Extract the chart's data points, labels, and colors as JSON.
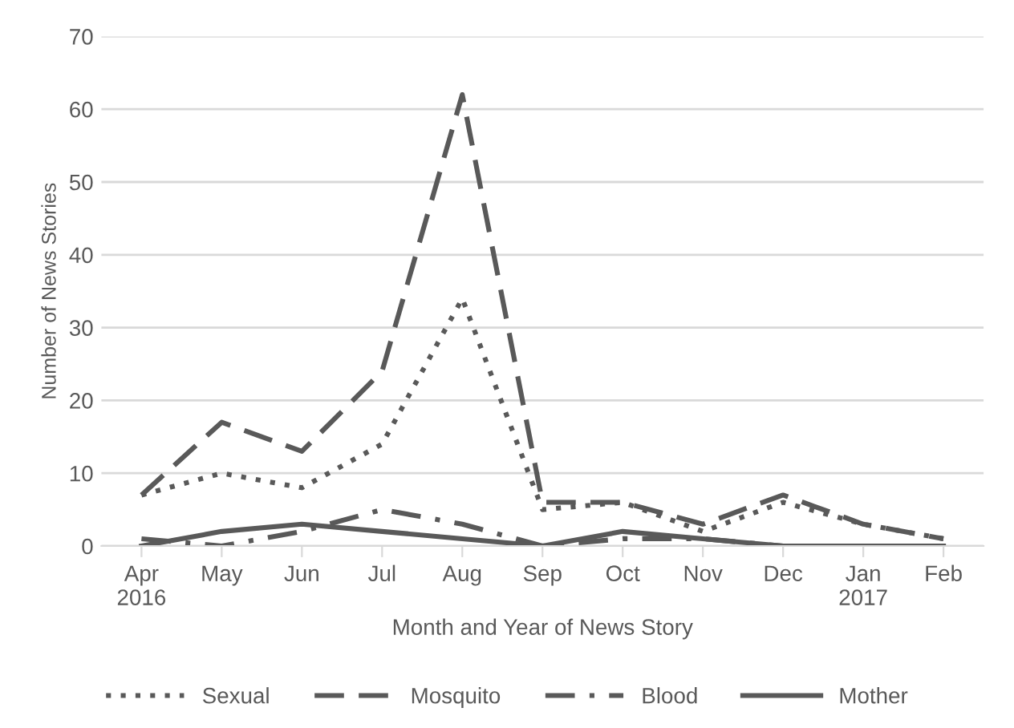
{
  "chart_data": {
    "type": "line",
    "xlabel": "Month and Year of News Story",
    "ylabel": "Number of News Stories",
    "categories": [
      "Apr\n2016",
      "May",
      "Jun",
      "Jul",
      "Aug",
      "Sep",
      "Oct",
      "Nov",
      "Dec",
      "Jan\n2017",
      "Feb"
    ],
    "ylim": [
      0,
      70
    ],
    "yticks": [
      0,
      10,
      20,
      30,
      40,
      50,
      60,
      70
    ],
    "grid": "y",
    "legend": "bottom",
    "marker": "none",
    "series": [
      {
        "name": "Sexual",
        "color": "#595959",
        "line_style": "dotted",
        "values": [
          7,
          10,
          8,
          14,
          34,
          5,
          6,
          2,
          6,
          3,
          1
        ]
      },
      {
        "name": "Mosquito",
        "color": "#595959",
        "line_style": "dashed",
        "values": [
          7,
          17,
          13,
          24,
          62,
          6,
          6,
          3,
          7,
          3,
          1
        ]
      },
      {
        "name": "Blood",
        "color": "#595959",
        "line_style": "dashdot",
        "values": [
          1,
          0,
          2,
          5,
          3,
          0,
          1,
          1,
          0,
          0,
          0
        ]
      },
      {
        "name": "Mother",
        "color": "#595959",
        "line_style": "solid",
        "values": [
          0,
          2,
          3,
          2,
          1,
          0,
          2,
          1,
          0,
          0,
          0
        ]
      }
    ]
  }
}
